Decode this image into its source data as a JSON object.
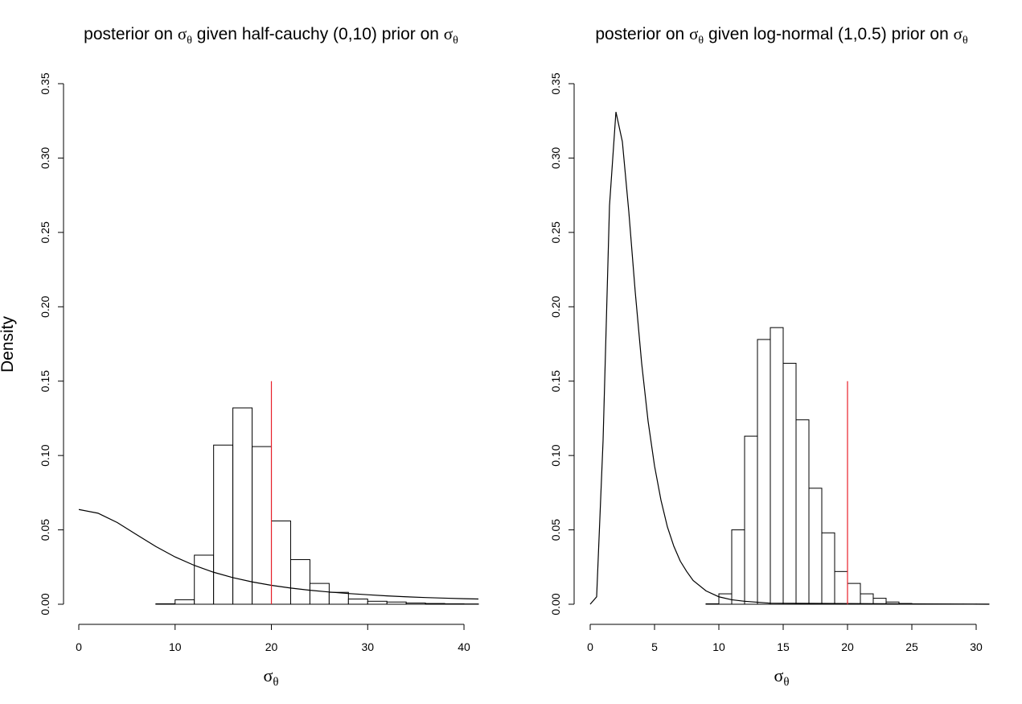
{
  "ylabel": "Density",
  "chart_data": [
    {
      "type": "bar",
      "title_parts": {
        "pre": "posterior on ",
        "sym1_main": "σ",
        "sym1_sub": "θ",
        "mid": " given half-cauchy (0,10) prior on  ",
        "sym2_main": "σ",
        "sym2_sub": "θ"
      },
      "xlabel_main": "σ",
      "xlabel_sub": "θ",
      "ylabel": "Density",
      "xlim": [
        0,
        41.5
      ],
      "ylim": [
        0,
        0.35
      ],
      "xticks": [
        0,
        10,
        20,
        30,
        40
      ],
      "xtick_labels": [
        "0",
        "10",
        "20",
        "30",
        "40"
      ],
      "yticks": [
        0,
        0.05,
        0.1,
        0.15,
        0.2,
        0.25,
        0.3,
        0.35
      ],
      "ytick_labels": [
        "0.00",
        "0.05",
        "0.10",
        "0.15",
        "0.20",
        "0.25",
        "0.30",
        "0.35"
      ],
      "histogram": {
        "bin_edges": [
          8,
          10,
          12,
          14,
          16,
          18,
          20,
          22,
          24,
          26,
          28,
          30,
          32,
          34,
          36,
          38,
          40,
          42
        ],
        "densities": [
          0.0003,
          0.003,
          0.033,
          0.107,
          0.132,
          0.106,
          0.056,
          0.03,
          0.014,
          0.008,
          0.0035,
          0.002,
          0.0015,
          0.0008,
          0.0005,
          0.0003,
          0.0002
        ]
      },
      "prior_curve": {
        "name": "half-cauchy (0,10) prior",
        "x": [
          0,
          2,
          4,
          6,
          8,
          10,
          12,
          14,
          16,
          18,
          20,
          22,
          24,
          26,
          28,
          30,
          32,
          34,
          36,
          38,
          40,
          41.5
        ],
        "y": [
          0.0637,
          0.0612,
          0.0549,
          0.0468,
          0.0388,
          0.0318,
          0.0261,
          0.0215,
          0.0179,
          0.015,
          0.0127,
          0.0109,
          0.0094,
          0.0082,
          0.0072,
          0.0064,
          0.0056,
          0.005,
          0.0045,
          0.0041,
          0.0037,
          0.0035
        ]
      },
      "reference_line": {
        "x": 20,
        "y": [
          0,
          0.15
        ],
        "color": "#e8202a"
      }
    },
    {
      "type": "bar",
      "title_parts": {
        "pre": "posterior on ",
        "sym1_main": "σ",
        "sym1_sub": "θ",
        "mid": " given log-normal (1,0.5) prior on ",
        "sym2_main": "σ",
        "sym2_sub": "θ"
      },
      "xlabel_main": "σ",
      "xlabel_sub": "θ",
      "ylabel": "Density",
      "xlim": [
        0,
        31
      ],
      "ylim": [
        0,
        0.35
      ],
      "xticks": [
        0,
        5,
        10,
        15,
        20,
        25,
        30
      ],
      "xtick_labels": [
        "0",
        "5",
        "10",
        "15",
        "20",
        "25",
        "30"
      ],
      "yticks": [
        0,
        0.05,
        0.1,
        0.15,
        0.2,
        0.25,
        0.3,
        0.35
      ],
      "ytick_labels": [
        "0.00",
        "0.05",
        "0.10",
        "0.15",
        "0.20",
        "0.25",
        "0.30",
        "0.35"
      ],
      "histogram": {
        "bin_edges": [
          9,
          10,
          11,
          12,
          13,
          14,
          15,
          16,
          17,
          18,
          19,
          20,
          21,
          22,
          23,
          24,
          25,
          26,
          27,
          28,
          29,
          30,
          31
        ],
        "densities": [
          0.0003,
          0.007,
          0.05,
          0.113,
          0.178,
          0.186,
          0.162,
          0.124,
          0.078,
          0.048,
          0.022,
          0.014,
          0.007,
          0.004,
          0.0015,
          0.0005,
          0.0002,
          0.0001,
          0.0001,
          0.0001,
          0.0001,
          0.0001
        ]
      },
      "prior_curve": {
        "name": "log-normal (1,0.5) prior",
        "x": [
          0,
          0.5,
          1,
          1.5,
          2,
          2.5,
          3,
          3.5,
          4,
          4.5,
          5,
          5.5,
          6,
          6.5,
          7,
          7.5,
          8,
          9,
          10,
          11,
          12,
          14,
          31
        ],
        "y": [
          0,
          0.005,
          0.11,
          0.268,
          0.331,
          0.311,
          0.264,
          0.21,
          0.162,
          0.123,
          0.093,
          0.07,
          0.052,
          0.039,
          0.029,
          0.022,
          0.016,
          0.009,
          0.005,
          0.003,
          0.002,
          0.0007,
          0
        ]
      },
      "reference_line": {
        "x": 20,
        "y": [
          0,
          0.15
        ],
        "color": "#e8202a"
      }
    }
  ]
}
